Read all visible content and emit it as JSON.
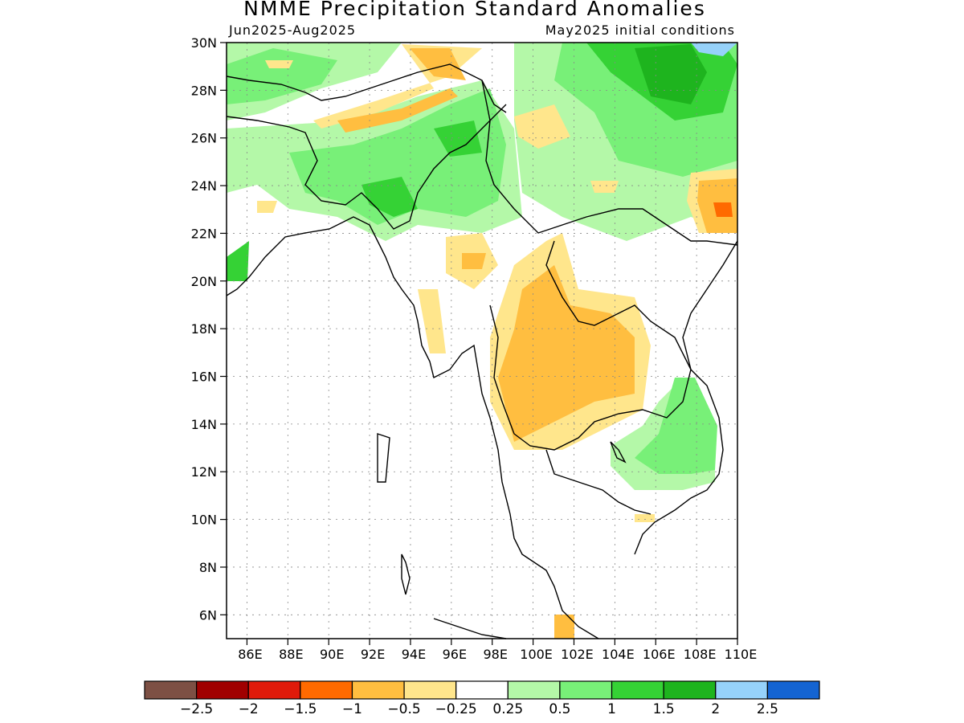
{
  "header": {
    "title": "NMME Precipitation Standard Anomalies",
    "season": "Jun2025-Aug2025",
    "init": "May2025 initial conditions"
  },
  "axes": {
    "lat_labels": [
      "30N",
      "28N",
      "26N",
      "24N",
      "22N",
      "20N",
      "18N",
      "16N",
      "14N",
      "12N",
      "10N",
      "8N",
      "6N"
    ],
    "lon_labels": [
      "86E",
      "88E",
      "90E",
      "92E",
      "94E",
      "96E",
      "98E",
      "100E",
      "102E",
      "104E",
      "106E",
      "108E",
      "110E"
    ]
  },
  "colorbar": {
    "colors": [
      "#7d5044",
      "#a00000",
      "#e01a0a",
      "#ff6a00",
      "#ffbe40",
      "#ffe68c",
      "#ffffff",
      "#b4f8a8",
      "#78f078",
      "#35d235",
      "#1eb41e",
      "#96d2fa",
      "#1464d2"
    ],
    "labels": [
      "-2.5",
      "-2",
      "-1.5",
      "-1",
      "-0.5",
      "-0.25",
      "0.25",
      "0.5",
      "1",
      "1.5",
      "2",
      "2.5"
    ]
  },
  "chart_data": {
    "type": "heatmap",
    "title": "NMME Precipitation Standard Anomalies",
    "subtitle_left": "Jun2025-Aug2025",
    "subtitle_right": "May2025 initial conditions",
    "xlim": [
      85,
      110
    ],
    "ylim": [
      5,
      30
    ],
    "x_ticks": [
      "86E",
      "88E",
      "90E",
      "92E",
      "94E",
      "96E",
      "98E",
      "100E",
      "102E",
      "104E",
      "106E",
      "108E",
      "110E"
    ],
    "y_ticks": [
      "30N",
      "28N",
      "26N",
      "24N",
      "22N",
      "20N",
      "18N",
      "16N",
      "14N",
      "12N",
      "10N",
      "8N",
      "6N"
    ],
    "levels": [
      -2.5,
      -2,
      -1.5,
      -1,
      -0.5,
      -0.25,
      0.25,
      0.5,
      1,
      1.5,
      2,
      2.5
    ],
    "grid": true,
    "anomaly_regions": [
      {
        "region": "Northeast India / Myanmar hills (~90-98E, 22-27N)",
        "value": 1.0
      },
      {
        "region": "Southern China (~103-109E, 25-30N)",
        "value": 1.5
      },
      {
        "region": "Far northeast corner (~109-110E, 29.5-30N)",
        "value": 2.0
      },
      {
        "region": "Tibet / Bhutan (~90-97E, 26-30N)",
        "value": -0.5
      },
      {
        "region": "Thailand / Laos interior (~98-104E, 13-21N)",
        "value": -0.5
      },
      {
        "region": "Guangxi coast (~108-110E, 22-24N)",
        "value": -1.0
      },
      {
        "region": "Central Vietnam / Cambodia (~105-109E, 11-16N)",
        "value": 0.5
      },
      {
        "region": "Myanmar central plains (~95-97E, 19-21N)",
        "value": -0.5
      },
      {
        "region": "Southern Thailand (~101E, 5-6N)",
        "value": -0.5
      }
    ]
  }
}
